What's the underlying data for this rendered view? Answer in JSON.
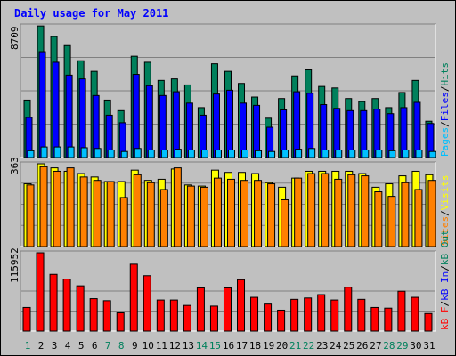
{
  "title": "Daily usage for May 2011",
  "colors": {
    "background": "#c0c0c0",
    "hits": "#00805c",
    "files": "#0000ff",
    "pages": "#00c0ff",
    "visits": "#ffff00",
    "sites": "#ff8000",
    "kbytes": "#ff0000",
    "title": "#0000ff"
  },
  "chart_data": [
    {
      "type": "bar",
      "panel": "hits-files-pages",
      "max_label": "8709",
      "ylim": [
        0,
        8709
      ],
      "grid": true,
      "legend": {
        "placement": "right",
        "entries": [
          {
            "label": "Pages",
            "color": "#00c0ff"
          },
          {
            "label": "/",
            "color": "#000000"
          },
          {
            "label": "Files",
            "color": "#0000ff"
          },
          {
            "label": "/",
            "color": "#000000"
          },
          {
            "label": "Hits",
            "color": "#00805c"
          }
        ]
      },
      "categories": [
        "1",
        "2",
        "3",
        "4",
        "5",
        "6",
        "7",
        "8",
        "9",
        "10",
        "11",
        "12",
        "13",
        "14",
        "15",
        "16",
        "17",
        "18",
        "19",
        "20",
        "21",
        "22",
        "23",
        "24",
        "25",
        "26",
        "27",
        "28",
        "29",
        "30",
        "31"
      ],
      "series": [
        {
          "name": "Hits",
          "values": [
            3800,
            8700,
            8000,
            7400,
            6400,
            5700,
            3800,
            3100,
            6700,
            6300,
            5100,
            5200,
            4800,
            3300,
            6200,
            5700,
            4900,
            4000,
            2600,
            3900,
            5400,
            5800,
            4700,
            4600,
            3900,
            3700,
            3900,
            3300,
            4300,
            5100,
            2400
          ]
        },
        {
          "name": "Files",
          "values": [
            2650,
            7000,
            6300,
            5450,
            5200,
            4100,
            2800,
            2300,
            5500,
            4750,
            4100,
            4350,
            3600,
            2800,
            4200,
            4450,
            3600,
            3450,
            2000,
            3150,
            4350,
            4250,
            3500,
            3250,
            3100,
            3100,
            3200,
            2900,
            3300,
            3650,
            2250
          ]
        },
        {
          "name": "Pages",
          "values": [
            450,
            700,
            700,
            700,
            650,
            600,
            500,
            400,
            600,
            500,
            500,
            550,
            500,
            500,
            500,
            500,
            500,
            450,
            400,
            500,
            550,
            600,
            500,
            500,
            500,
            500,
            500,
            450,
            500,
            500,
            400
          ]
        }
      ]
    },
    {
      "type": "bar",
      "panel": "visits-sites",
      "max_label": "363",
      "ylim": [
        0,
        363
      ],
      "grid": true,
      "legend": {
        "placement": "right",
        "entries": [
          {
            "label": "Sites",
            "color": "#ff8000"
          },
          {
            "label": "/",
            "color": "#000000"
          },
          {
            "label": "Visits",
            "color": "#ffff00"
          }
        ]
      },
      "categories": [
        "1",
        "2",
        "3",
        "4",
        "5",
        "6",
        "7",
        "8",
        "9",
        "10",
        "11",
        "12",
        "13",
        "14",
        "15",
        "16",
        "17",
        "18",
        "19",
        "20",
        "21",
        "22",
        "23",
        "24",
        "25",
        "26",
        "27",
        "28",
        "29",
        "30",
        "31"
      ],
      "series": [
        {
          "name": "Visits",
          "values": [
            275,
            363,
            345,
            330,
            320,
            305,
            285,
            285,
            335,
            290,
            295,
            340,
            270,
            265,
            335,
            325,
            325,
            320,
            280,
            260,
            300,
            330,
            330,
            330,
            330,
            320,
            260,
            275,
            310,
            330,
            315
          ]
        },
        {
          "name": "Sites",
          "values": [
            270,
            350,
            330,
            345,
            305,
            290,
            285,
            215,
            315,
            280,
            250,
            345,
            265,
            260,
            300,
            295,
            290,
            290,
            275,
            205,
            300,
            320,
            320,
            295,
            315,
            310,
            240,
            220,
            280,
            250,
            290
          ]
        }
      ]
    },
    {
      "type": "bar",
      "panel": "kbytes",
      "max_label": "115952",
      "ylim": [
        0,
        115952
      ],
      "grid": true,
      "legend": {
        "placement": "right",
        "entries": [
          {
            "label": "kB F",
            "color": "#ff0000"
          },
          {
            "label": "/",
            "color": "#000000"
          },
          {
            "label": "kB In",
            "color": "#0000ff"
          },
          {
            "label": "/",
            "color": "#000000"
          },
          {
            "label": "kB Out",
            "color": "#00805c"
          }
        ]
      },
      "categories": [
        "1",
        "2",
        "3",
        "4",
        "5",
        "6",
        "7",
        "8",
        "9",
        "10",
        "11",
        "12",
        "13",
        "14",
        "15",
        "16",
        "17",
        "18",
        "19",
        "20",
        "21",
        "22",
        "23",
        "24",
        "25",
        "26",
        "27",
        "28",
        "29",
        "30",
        "31"
      ],
      "series": [
        {
          "name": "kB F",
          "values": [
            35000,
            115952,
            84000,
            77000,
            67000,
            48000,
            45000,
            27000,
            99000,
            82000,
            46000,
            46000,
            38000,
            64000,
            37000,
            64000,
            76000,
            50000,
            40000,
            31000,
            47000,
            49000,
            54000,
            46000,
            65000,
            47000,
            35000,
            34000,
            59000,
            50000,
            26000
          ]
        }
      ]
    }
  ],
  "day_label_colors": {
    "weekday": "#000000",
    "weekend": "#00805c",
    "weekend_days": [
      "1",
      "7",
      "8",
      "14",
      "15",
      "21",
      "22",
      "28",
      "29"
    ]
  }
}
